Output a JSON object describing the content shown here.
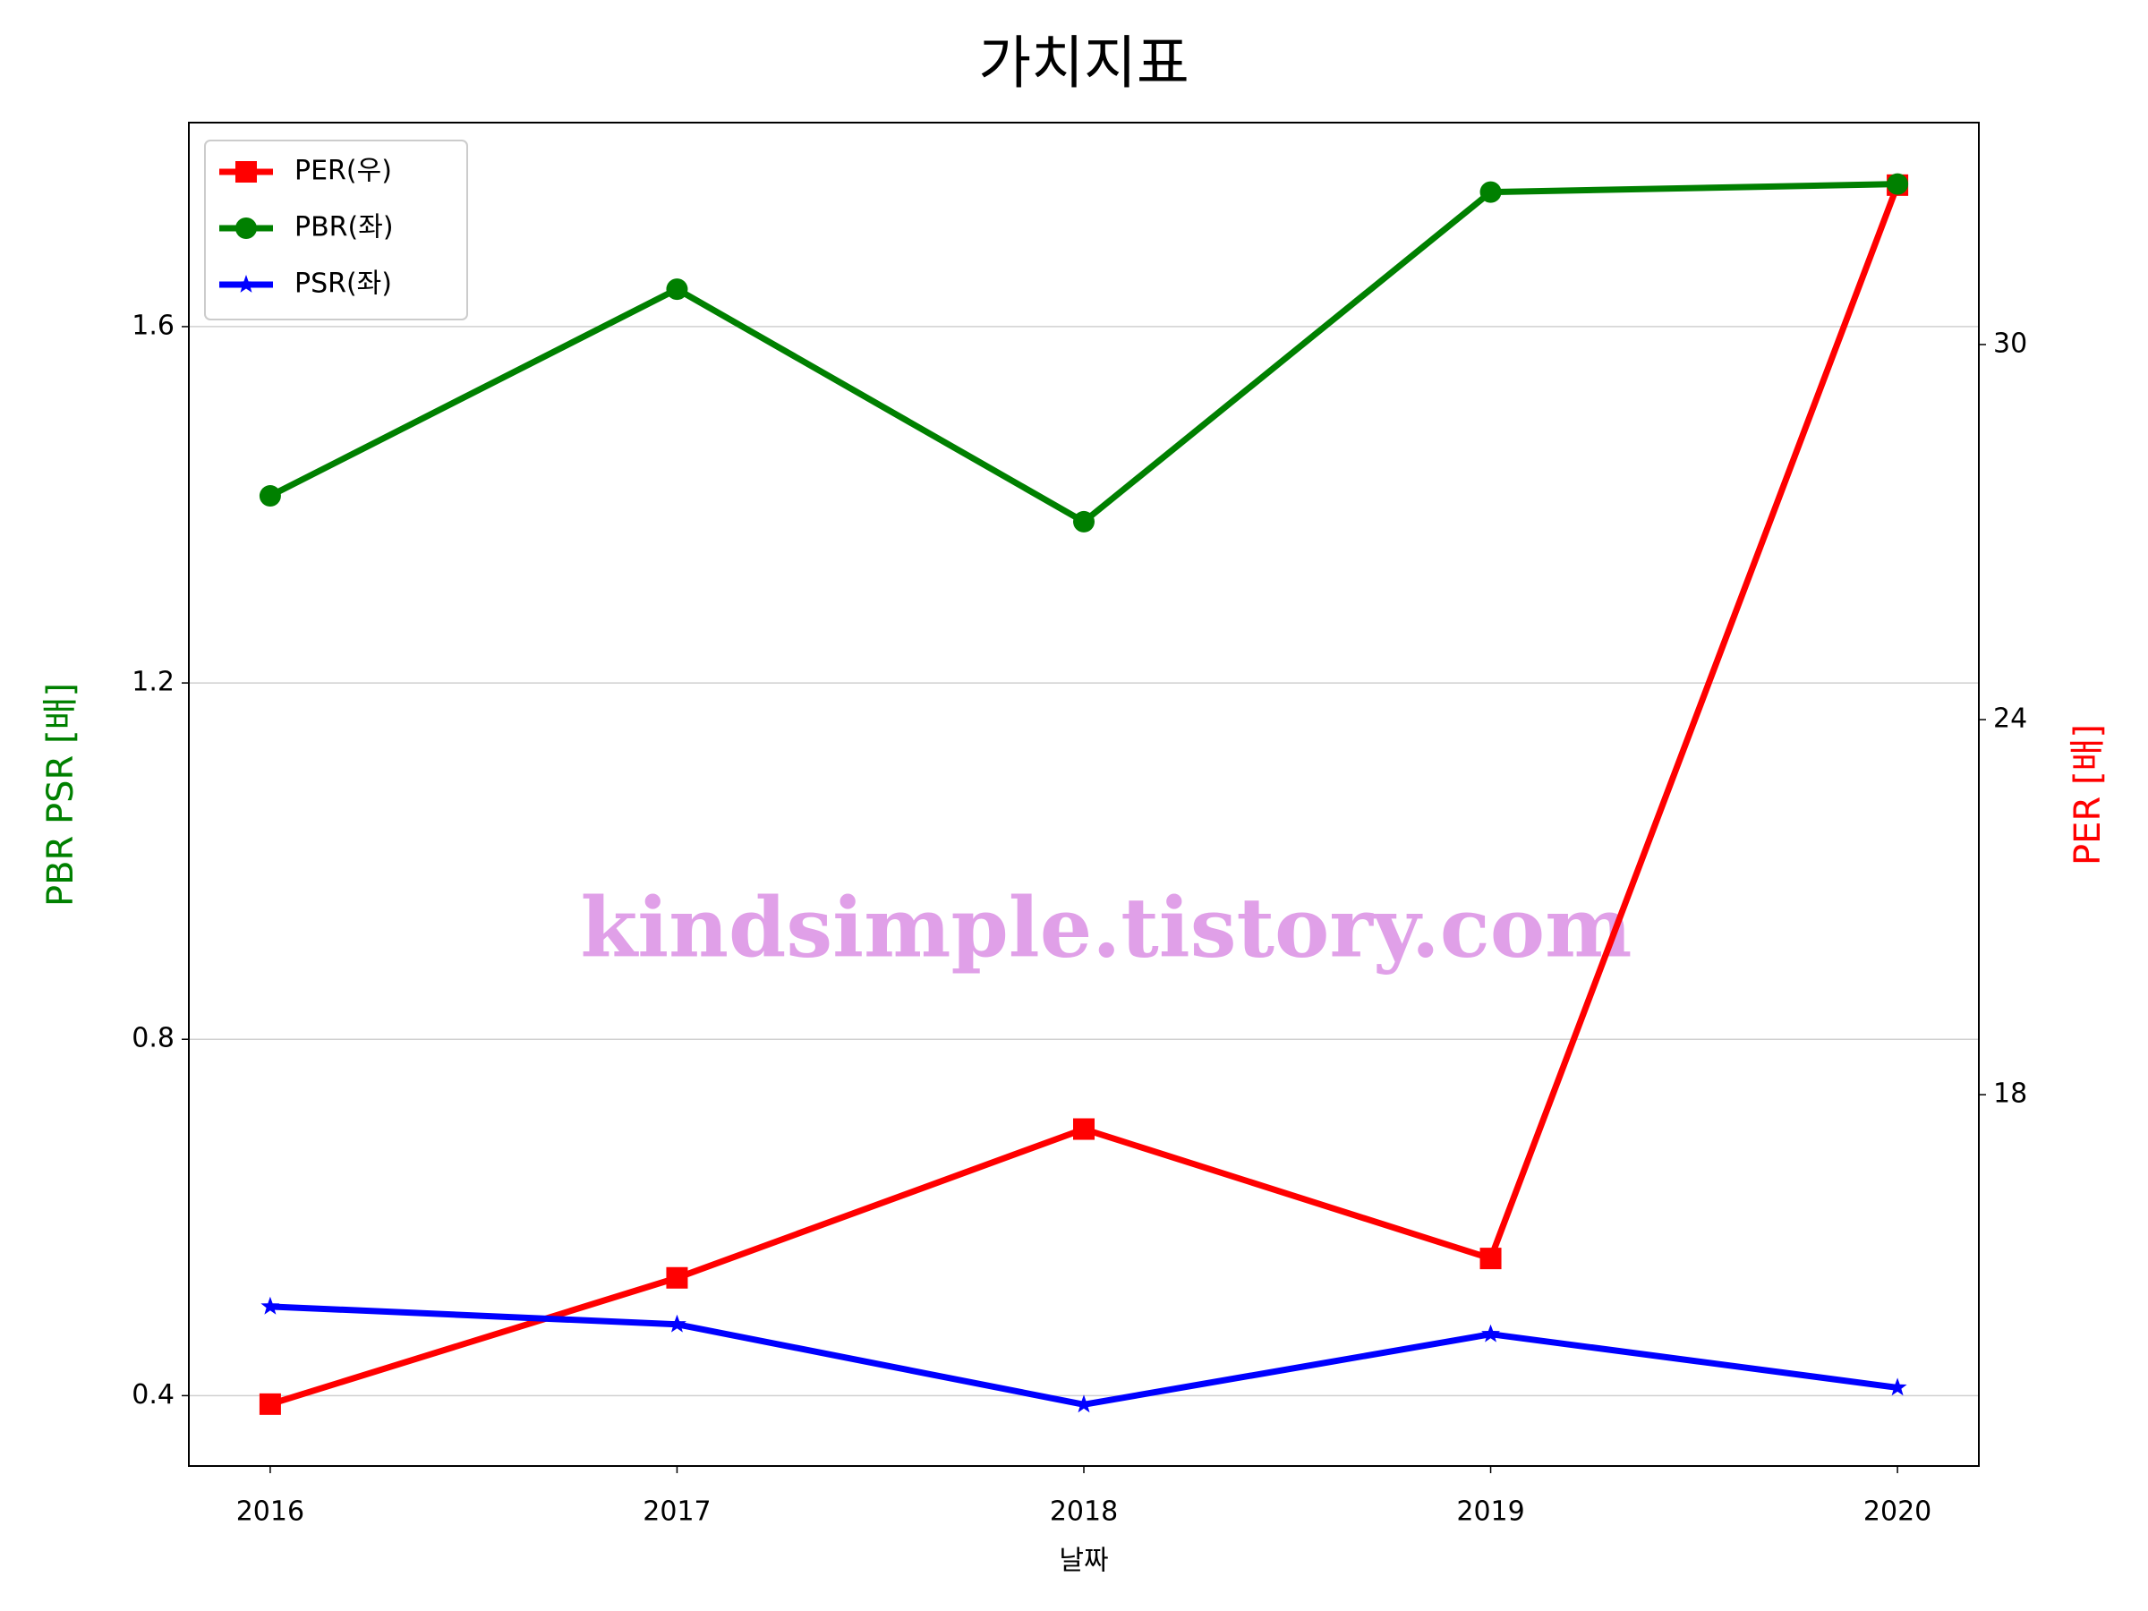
{
  "chart_data": {
    "type": "line",
    "title": "가치지표",
    "x_label": "날짜",
    "y_label": "PBR PSR [배]",
    "y2_label": "PER [배]",
    "watermark": "kindsimple.tistory.com",
    "x": [
      2016,
      2017,
      2018,
      2019,
      2020
    ],
    "xlim": [
      2015.8,
      2020.2
    ],
    "xticks": [
      2016,
      2017,
      2018,
      2019,
      2020
    ],
    "ylim": [
      0.321,
      1.829
    ],
    "yticks": [
      0.4,
      0.8,
      1.2,
      1.6
    ],
    "y2lim": [
      12.06,
      33.55
    ],
    "y2ticks": [
      18,
      24,
      30
    ],
    "grid": true,
    "legend": "upper left",
    "series": [
      {
        "name": "PER(우)",
        "color": "#ff0000",
        "marker": "square",
        "axis": "y2",
        "values": [
          13.05,
          15.07,
          17.45,
          15.38,
          32.55
        ]
      },
      {
        "name": "PBR(좌)",
        "color": "#008000",
        "marker": "circle",
        "values": [
          1.41,
          1.642,
          1.381,
          1.751,
          1.76
        ]
      },
      {
        "name": "PSR(좌)",
        "color": "#0000ff",
        "marker": "star",
        "values": [
          0.5,
          0.48,
          0.39,
          0.469,
          0.409
        ]
      }
    ]
  }
}
